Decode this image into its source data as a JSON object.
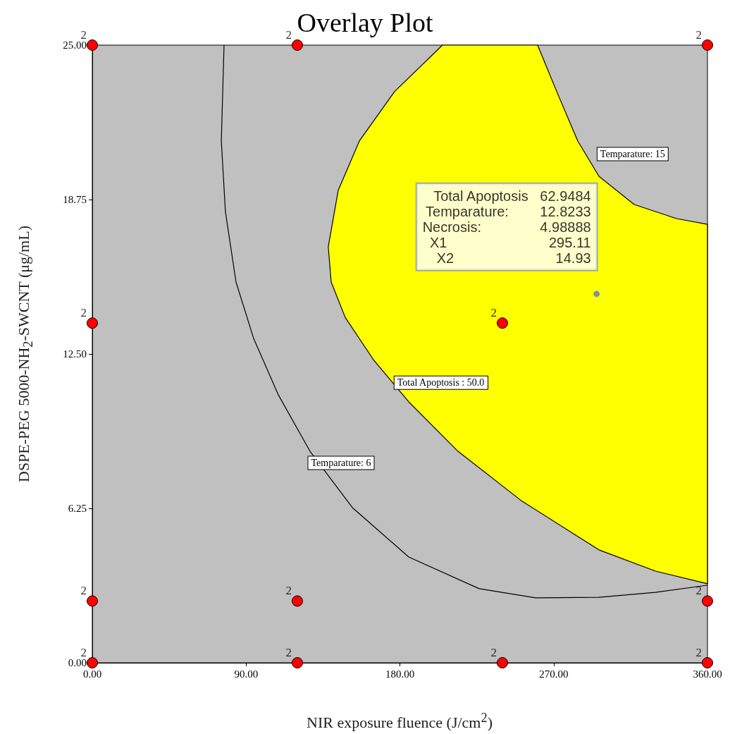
{
  "chart_data": {
    "type": "scatter",
    "title": "Overlay Plot",
    "xlabel": "NIR exposure fluence (J/cm$^{2}$)",
    "ylabel": "DSPE-PEG 5000-NH$_{2}$-SWCNT (μg/mL)",
    "xlim": [
      0,
      360
    ],
    "ylim": [
      0,
      25
    ],
    "xticks": [
      {
        "value": 0,
        "label": "0.00"
      },
      {
        "value": 90,
        "label": "90.00"
      },
      {
        "value": 180,
        "label": "180.00"
      },
      {
        "value": 270,
        "label": "270.00"
      },
      {
        "value": 360,
        "label": "360.00"
      }
    ],
    "yticks": [
      {
        "value": 0,
        "label": "0.00"
      },
      {
        "value": 6.25,
        "label": "6.25"
      },
      {
        "value": 12.5,
        "label": "12.50"
      },
      {
        "value": 18.75,
        "label": "18.75"
      },
      {
        "value": 25,
        "label": "25.00"
      }
    ],
    "grid": false,
    "series": [
      {
        "type": "area",
        "color": "#ffff00",
        "x": [
          204.9,
          176.9,
          156.3,
          143.9,
          138.1,
          139.8,
          148.0,
          164.5,
          185.2,
          214.0,
          251.1,
          296.5,
          329.6,
          360,
          360,
          341.9,
          317.1,
          296.5,
          284.1,
          271.8,
          260.6
        ],
        "values": [
          25,
          23.12,
          21.12,
          19.12,
          16.84,
          15.41,
          13.98,
          12.27,
          10.56,
          8.56,
          6.56,
          4.57,
          3.71,
          3.2,
          17.75,
          17.98,
          18.55,
          19.69,
          21.12,
          23.12,
          25
        ]
      },
      {
        "type": "line",
        "color": "#000000",
        "marker": "none",
        "x": [
          77.1,
          75.5,
          77.9,
          84.1,
          94.4,
          108.9,
          127.4,
          152.2,
          185.2,
          226.4,
          259.4,
          296.5,
          329.5,
          360
        ],
        "values": [
          25,
          21.12,
          18.26,
          15.41,
          13.13,
          10.84,
          8.56,
          6.28,
          4.28,
          3.0,
          2.63,
          2.65,
          2.85,
          3.14
        ]
      },
      {
        "color": "#ff0000",
        "marker": "circle",
        "x": [
          0,
          0,
          0,
          0,
          120,
          120,
          120,
          240,
          240,
          360,
          360,
          360
        ],
        "values": [
          0,
          2.5,
          13.75,
          25,
          0,
          2.5,
          25,
          0,
          13.75,
          0,
          2.5,
          25
        ]
      },
      {
        "type": "scatter",
        "color": "#8090a0",
        "marker": "circle",
        "x": [
          295.11
        ],
        "values": [
          14.93
        ]
      }
    ],
    "annotations": [
      "Temparature: 15",
      "Total Apoptosis : 50.0",
      "Temparature: 6",
      {
        "text": "Total Apoptosis   62.9484\nTemparature:        12.8233\nNecrosis:               4.98888\nX1                          295.11\nX2                          14.93",
        "x": 295.11,
        "y": 14.93
      },
      {
        "text": "2",
        "x": 0,
        "y": 0
      },
      {
        "text": "2",
        "x": 0,
        "y": 2.5
      },
      {
        "text": "2",
        "x": 0,
        "y": 13.75
      },
      {
        "text": "2",
        "x": 0,
        "y": 25
      },
      {
        "text": "2",
        "x": 120,
        "y": 0
      },
      {
        "text": "2",
        "x": 120,
        "y": 2.5
      },
      {
        "text": "2",
        "x": 120,
        "y": 25
      },
      {
        "text": "2",
        "x": 240,
        "y": 0
      },
      {
        "text": "2",
        "x": 240,
        "y": 13.75
      },
      {
        "text": "2",
        "x": 360,
        "y": 0
      },
      {
        "text": "2",
        "x": 360,
        "y": 2.5
      },
      {
        "text": "2",
        "x": 360,
        "y": 25
      }
    ]
  }
}
